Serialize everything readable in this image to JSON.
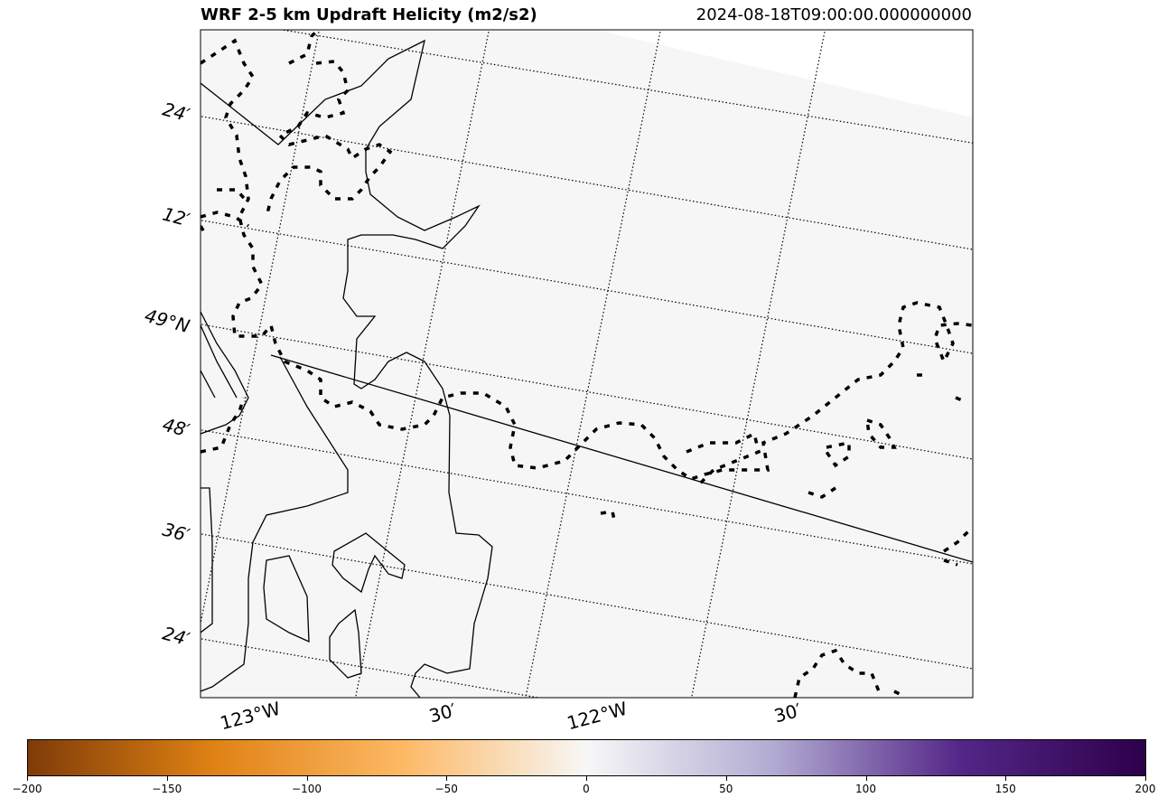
{
  "title": "WRF 2-5 km Updraft Helicity (m2/s2)",
  "valid_time": "2024-08-18T09:00:00.000000000",
  "map": {
    "lat_labels": [
      "24′",
      "12′",
      "49°N",
      "48′",
      "36′",
      "24′"
    ],
    "lon_labels": [
      "123°W",
      "30′",
      "122°W",
      "30′"
    ]
  },
  "colorbar": {
    "cmap": "PuOr",
    "vmin": -200,
    "vmax": 200,
    "ticks": [
      "−200",
      "−150",
      "−100",
      "−50",
      "0",
      "50",
      "100",
      "150",
      "200"
    ],
    "colors": [
      "#7f3b08",
      "#e08214",
      "#fdb863",
      "#f7f7f7",
      "#b2abd2",
      "#542788",
      "#2d004b"
    ]
  }
}
